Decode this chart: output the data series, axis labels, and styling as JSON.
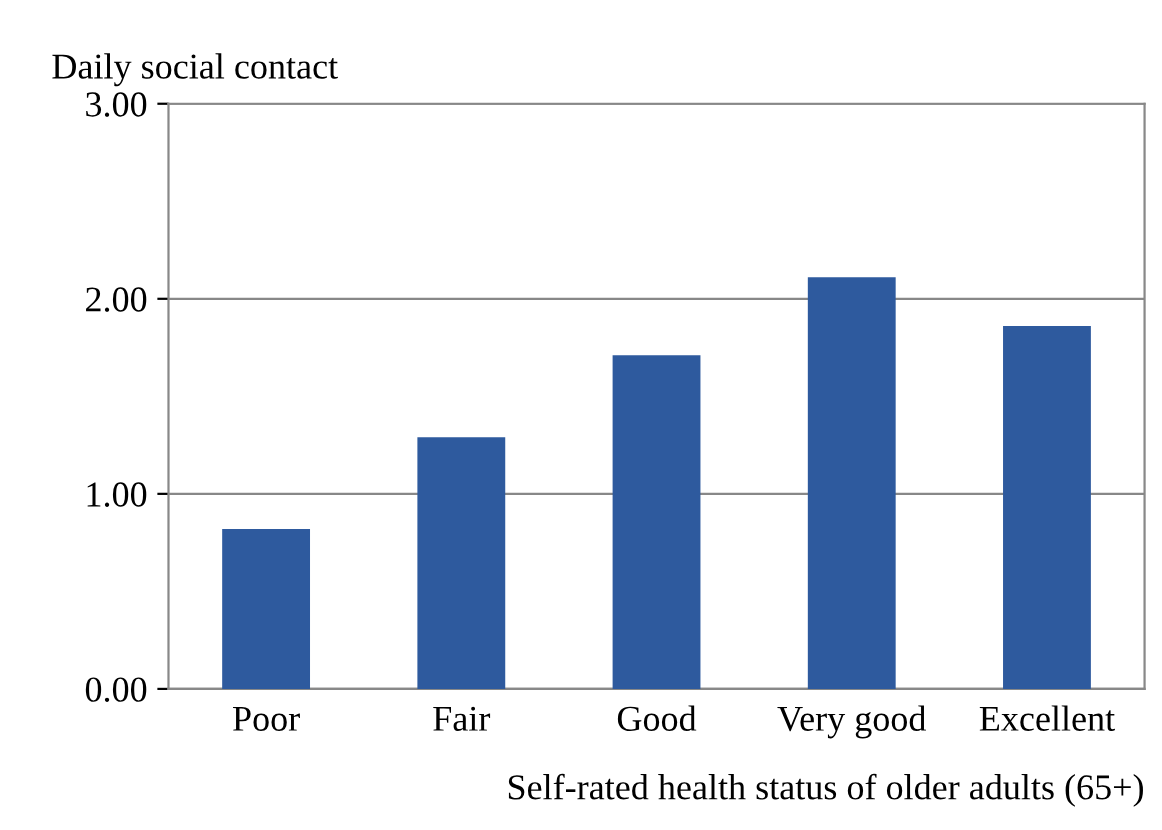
{
  "chart_data": {
    "type": "bar",
    "xlabel": "Self-rated health status of older adults (65+)",
    "ylabel": "Daily social contact",
    "categories": [
      "Poor",
      "Fair",
      "Good",
      "Very good",
      "Excellent"
    ],
    "values": [
      0.82,
      1.29,
      1.71,
      2.11,
      1.86
    ],
    "color": "#2e5a9e",
    "ylim": [
      0,
      3
    ],
    "yticks": [
      {
        "value": 0,
        "label": "0.00"
      },
      {
        "value": 1,
        "label": "1.00"
      },
      {
        "value": 2,
        "label": "2.00"
      },
      {
        "value": 3,
        "label": "3.00"
      }
    ],
    "grid": "y"
  }
}
